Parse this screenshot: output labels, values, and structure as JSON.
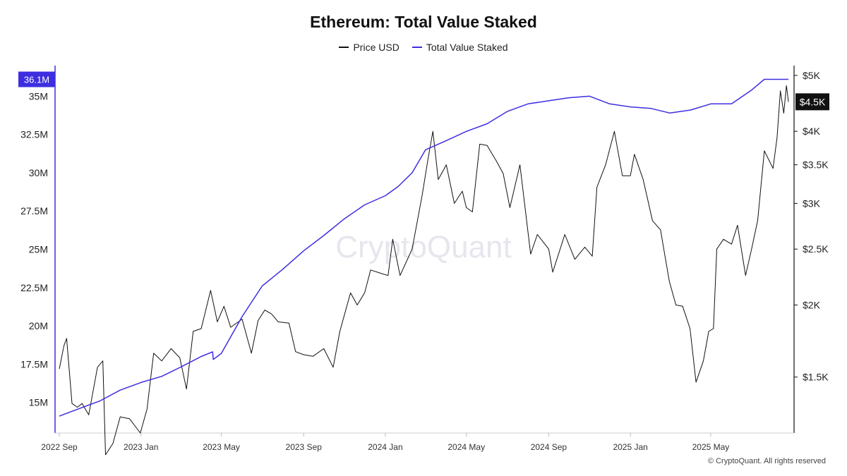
{
  "chart_data": {
    "type": "line",
    "title": "Ethereum: Total Value Staked",
    "legend_position": "top-center",
    "grid": false,
    "watermark": "CryptoQuant",
    "x": {
      "type": "time",
      "range": [
        "2022-09-01",
        "2025-08-25"
      ],
      "tick_labels": [
        "2022 Sep",
        "2023 Jan",
        "2023 May",
        "2023 Sep",
        "2024 Jan",
        "2024 May",
        "2024 Sep",
        "2025 Jan",
        "2025 May"
      ],
      "ticks": [
        "2022-09-01",
        "2023-01-01",
        "2023-05-01",
        "2023-09-01",
        "2024-01-01",
        "2024-05-01",
        "2024-09-01",
        "2025-01-01",
        "2025-05-01"
      ]
    },
    "y_left": {
      "range": [
        13000000,
        37000000
      ],
      "scale": "linear",
      "tick_labels": [
        "15M",
        "17.5M",
        "20M",
        "22.5M",
        "25M",
        "27.5M",
        "30M",
        "32.5M",
        "35M"
      ],
      "ticks": [
        15000000,
        17500000,
        20000000,
        22500000,
        25000000,
        27500000,
        30000000,
        32500000,
        35000000
      ],
      "last_value_label": "36.1M",
      "last_value": 36100000
    },
    "y_right": {
      "range": [
        1200,
        5200
      ],
      "scale": "log",
      "tick_labels": [
        "$1.5K",
        "$2K",
        "$2.5K",
        "$3K",
        "$3.5K",
        "$4K",
        "$5K"
      ],
      "ticks": [
        1500,
        2000,
        2500,
        3000,
        3500,
        4000,
        5000
      ],
      "last_value_label": "$4.5K",
      "last_value": 4500
    },
    "series": [
      {
        "name": "Price USD",
        "color": "#111111",
        "axis": "right",
        "points": [
          [
            "2022-09-01",
            1550
          ],
          [
            "2022-09-08",
            1700
          ],
          [
            "2022-09-12",
            1750
          ],
          [
            "2022-09-20",
            1350
          ],
          [
            "2022-09-28",
            1330
          ],
          [
            "2022-10-05",
            1350
          ],
          [
            "2022-10-15",
            1290
          ],
          [
            "2022-10-28",
            1560
          ],
          [
            "2022-11-05",
            1600
          ],
          [
            "2022-11-09",
            1100
          ],
          [
            "2022-11-20",
            1150
          ],
          [
            "2022-12-01",
            1280
          ],
          [
            "2022-12-15",
            1270
          ],
          [
            "2022-12-31",
            1200
          ],
          [
            "2023-01-10",
            1320
          ],
          [
            "2023-01-20",
            1650
          ],
          [
            "2023-02-01",
            1600
          ],
          [
            "2023-02-15",
            1680
          ],
          [
            "2023-02-28",
            1620
          ],
          [
            "2023-03-10",
            1430
          ],
          [
            "2023-03-20",
            1800
          ],
          [
            "2023-04-01",
            1820
          ],
          [
            "2023-04-15",
            2120
          ],
          [
            "2023-04-25",
            1870
          ],
          [
            "2023-05-05",
            1990
          ],
          [
            "2023-05-15",
            1830
          ],
          [
            "2023-06-01",
            1890
          ],
          [
            "2023-06-15",
            1650
          ],
          [
            "2023-06-25",
            1880
          ],
          [
            "2023-07-05",
            1960
          ],
          [
            "2023-07-15",
            1930
          ],
          [
            "2023-07-25",
            1870
          ],
          [
            "2023-08-10",
            1860
          ],
          [
            "2023-08-20",
            1660
          ],
          [
            "2023-09-01",
            1640
          ],
          [
            "2023-09-15",
            1630
          ],
          [
            "2023-10-01",
            1680
          ],
          [
            "2023-10-15",
            1560
          ],
          [
            "2023-10-25",
            1800
          ],
          [
            "2023-11-10",
            2100
          ],
          [
            "2023-11-20",
            2000
          ],
          [
            "2023-12-01",
            2100
          ],
          [
            "2023-12-10",
            2300
          ],
          [
            "2023-12-25",
            2270
          ],
          [
            "2024-01-05",
            2250
          ],
          [
            "2024-01-12",
            2600
          ],
          [
            "2024-01-23",
            2250
          ],
          [
            "2024-02-10",
            2500
          ],
          [
            "2024-02-25",
            3100
          ],
          [
            "2024-03-05",
            3600
          ],
          [
            "2024-03-12",
            4000
          ],
          [
            "2024-03-20",
            3300
          ],
          [
            "2024-04-01",
            3500
          ],
          [
            "2024-04-13",
            3000
          ],
          [
            "2024-04-25",
            3150
          ],
          [
            "2024-05-01",
            2950
          ],
          [
            "2024-05-10",
            2900
          ],
          [
            "2024-05-21",
            3800
          ],
          [
            "2024-06-01",
            3780
          ],
          [
            "2024-06-15",
            3550
          ],
          [
            "2024-06-25",
            3380
          ],
          [
            "2024-07-05",
            2950
          ],
          [
            "2024-07-20",
            3500
          ],
          [
            "2024-08-05",
            2450
          ],
          [
            "2024-08-15",
            2650
          ],
          [
            "2024-09-01",
            2500
          ],
          [
            "2024-09-07",
            2280
          ],
          [
            "2024-09-25",
            2650
          ],
          [
            "2024-10-10",
            2400
          ],
          [
            "2024-10-25",
            2520
          ],
          [
            "2024-11-05",
            2430
          ],
          [
            "2024-11-12",
            3200
          ],
          [
            "2024-11-25",
            3500
          ],
          [
            "2024-12-08",
            4000
          ],
          [
            "2024-12-20",
            3350
          ],
          [
            "2025-01-01",
            3350
          ],
          [
            "2025-01-07",
            3650
          ],
          [
            "2025-01-20",
            3300
          ],
          [
            "2025-02-03",
            2800
          ],
          [
            "2025-02-15",
            2700
          ],
          [
            "2025-02-28",
            2200
          ],
          [
            "2025-03-10",
            2000
          ],
          [
            "2025-03-20",
            1990
          ],
          [
            "2025-03-31",
            1820
          ],
          [
            "2025-04-09",
            1470
          ],
          [
            "2025-04-20",
            1600
          ],
          [
            "2025-04-28",
            1800
          ],
          [
            "2025-05-05",
            1820
          ],
          [
            "2025-05-10",
            2500
          ],
          [
            "2025-05-20",
            2600
          ],
          [
            "2025-06-01",
            2550
          ],
          [
            "2025-06-10",
            2750
          ],
          [
            "2025-06-22",
            2250
          ],
          [
            "2025-07-01",
            2500
          ],
          [
            "2025-07-10",
            2800
          ],
          [
            "2025-07-20",
            3700
          ],
          [
            "2025-08-02",
            3450
          ],
          [
            "2025-08-08",
            3900
          ],
          [
            "2025-08-13",
            4700
          ],
          [
            "2025-08-18",
            4300
          ],
          [
            "2025-08-22",
            4800
          ],
          [
            "2025-08-25",
            4500
          ]
        ]
      },
      {
        "name": "Total Value Staked",
        "color": "#3d2ee0",
        "axis": "left",
        "points": [
          [
            "2022-09-01",
            14100000
          ],
          [
            "2022-10-01",
            14600000
          ],
          [
            "2022-11-01",
            15100000
          ],
          [
            "2022-12-01",
            15800000
          ],
          [
            "2023-01-01",
            16300000
          ],
          [
            "2023-02-01",
            16700000
          ],
          [
            "2023-03-01",
            17300000
          ],
          [
            "2023-04-01",
            18000000
          ],
          [
            "2023-04-18",
            18300000
          ],
          [
            "2023-04-19",
            17800000
          ],
          [
            "2023-05-01",
            18200000
          ],
          [
            "2023-06-01",
            20600000
          ],
          [
            "2023-07-01",
            22600000
          ],
          [
            "2023-08-01",
            23700000
          ],
          [
            "2023-09-01",
            24900000
          ],
          [
            "2023-10-01",
            25900000
          ],
          [
            "2023-11-01",
            27000000
          ],
          [
            "2023-12-01",
            27900000
          ],
          [
            "2024-01-01",
            28500000
          ],
          [
            "2024-01-20",
            29100000
          ],
          [
            "2024-02-10",
            30000000
          ],
          [
            "2024-03-01",
            31500000
          ],
          [
            "2024-04-01",
            32100000
          ],
          [
            "2024-05-01",
            32700000
          ],
          [
            "2024-06-01",
            33200000
          ],
          [
            "2024-07-01",
            34000000
          ],
          [
            "2024-08-01",
            34500000
          ],
          [
            "2024-09-01",
            34700000
          ],
          [
            "2024-10-01",
            34900000
          ],
          [
            "2024-11-01",
            35000000
          ],
          [
            "2024-12-01",
            34500000
          ],
          [
            "2025-01-01",
            34300000
          ],
          [
            "2025-02-01",
            34200000
          ],
          [
            "2025-03-01",
            33900000
          ],
          [
            "2025-04-01",
            34100000
          ],
          [
            "2025-05-01",
            34500000
          ],
          [
            "2025-06-01",
            34500000
          ],
          [
            "2025-07-01",
            35400000
          ],
          [
            "2025-07-20",
            36100000
          ],
          [
            "2025-08-10",
            36100000
          ],
          [
            "2025-08-25",
            36100000
          ]
        ]
      }
    ]
  },
  "footer": {
    "copyright": "© CryptoQuant. All rights reserved"
  }
}
